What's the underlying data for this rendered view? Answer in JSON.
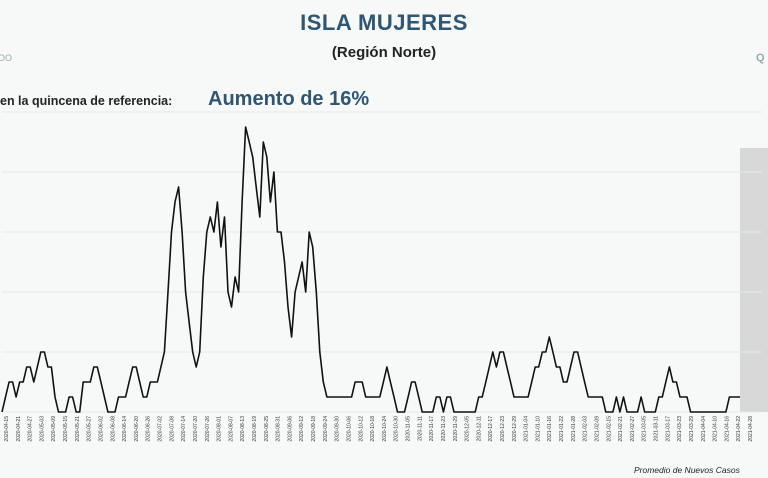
{
  "header": {
    "title": "ISLA MUJERES",
    "subtitle": "(Región Norte)",
    "reference_label": "en la quincena de referencia:",
    "reference_value": "Aumento de 16%",
    "edge_left": "OO",
    "edge_right": "Q"
  },
  "footnote": "Promedio de Nuevos Casos",
  "colors": {
    "title": "#2f5673",
    "line": "#111111",
    "shade": "#d8d8d8"
  },
  "chart_data": {
    "type": "line",
    "title": "ISLA MUJERES",
    "subtitle": "(Región Norte)",
    "xlabel": "",
    "ylabel": "",
    "grid": true,
    "shaded_last_period": true,
    "x_ticks": [
      "2020-04-15",
      "2020-04-21",
      "2020-04-27",
      "2020-05-03",
      "2020-05-09",
      "2020-05-15",
      "2020-05-21",
      "2020-05-27",
      "2020-06-02",
      "2020-06-08",
      "2020-06-14",
      "2020-06-20",
      "2020-06-26",
      "2020-07-02",
      "2020-07-08",
      "2020-07-14",
      "2020-07-20",
      "2020-07-26",
      "2020-08-01",
      "2020-08-07",
      "2020-08-13",
      "2020-08-19",
      "2020-08-25",
      "2020-08-31",
      "2020-09-06",
      "2020-09-12",
      "2020-09-18",
      "2020-09-24",
      "2020-09-30",
      "2020-10-06",
      "2020-10-12",
      "2020-10-18",
      "2020-10-24",
      "2020-10-30",
      "2020-11-05",
      "2020-11-11",
      "2020-11-17",
      "2020-11-23",
      "2020-11-29",
      "2020-12-05",
      "2020-12-11",
      "2020-12-17",
      "2020-12-23",
      "2020-12-29",
      "2021-01-04",
      "2021-01-10",
      "2021-01-16",
      "2021-01-22",
      "2021-01-28",
      "2021-02-03",
      "2021-02-09",
      "2021-02-15",
      "2021-02-21",
      "2021-02-27",
      "2021-03-05",
      "2021-03-11",
      "2021-03-17",
      "2021-03-23",
      "2021-03-29",
      "2021-04-04",
      "2021-04-10",
      "2021-04-16",
      "2021-04-22",
      "2021-04-28"
    ],
    "series": [
      {
        "values": [
          0,
          1,
          2,
          2,
          1,
          2,
          2,
          3,
          3,
          2,
          3,
          4,
          4,
          3,
          3,
          1,
          0,
          0,
          0,
          1,
          1,
          0,
          0,
          2,
          2,
          2,
          3,
          3,
          2,
          1,
          0,
          0,
          0,
          1,
          1,
          1,
          2,
          3,
          3,
          2,
          1,
          1,
          2,
          2,
          2,
          3,
          4,
          8,
          12,
          14,
          15,
          12,
          8,
          6,
          4,
          3,
          4,
          9,
          12,
          13,
          12,
          14,
          11,
          13,
          8,
          7,
          9,
          8,
          14,
          19,
          18,
          17,
          15,
          13,
          18,
          17,
          14,
          16,
          12,
          12,
          10,
          7,
          5,
          8,
          9,
          10,
          8,
          12,
          11,
          8,
          4,
          2,
          1,
          1,
          1,
          1,
          1,
          1,
          1,
          1,
          2,
          2,
          2,
          1,
          1,
          1,
          1,
          1,
          2,
          3,
          2,
          1,
          0,
          0,
          0,
          1,
          2,
          2,
          1,
          0,
          0,
          0,
          0,
          1,
          1,
          0,
          1,
          1,
          0,
          0,
          0,
          0,
          0,
          0,
          0,
          1,
          1,
          2,
          3,
          4,
          3,
          4,
          4,
          3,
          2,
          1,
          1,
          1,
          1,
          1,
          2,
          3,
          3,
          4,
          4,
          5,
          4,
          3,
          3,
          2,
          2,
          3,
          4,
          4,
          3,
          2,
          1,
          1,
          1,
          1,
          1,
          0,
          0,
          0,
          1,
          0,
          1,
          0,
          0,
          0,
          0,
          1,
          0,
          0,
          0,
          0,
          1,
          1,
          2,
          3,
          2,
          2,
          1,
          1,
          1,
          0,
          0,
          0,
          0,
          0,
          0,
          0,
          0,
          0,
          0,
          0,
          1,
          1,
          1,
          1
        ]
      }
    ],
    "ylim": [
      0,
      20
    ]
  }
}
